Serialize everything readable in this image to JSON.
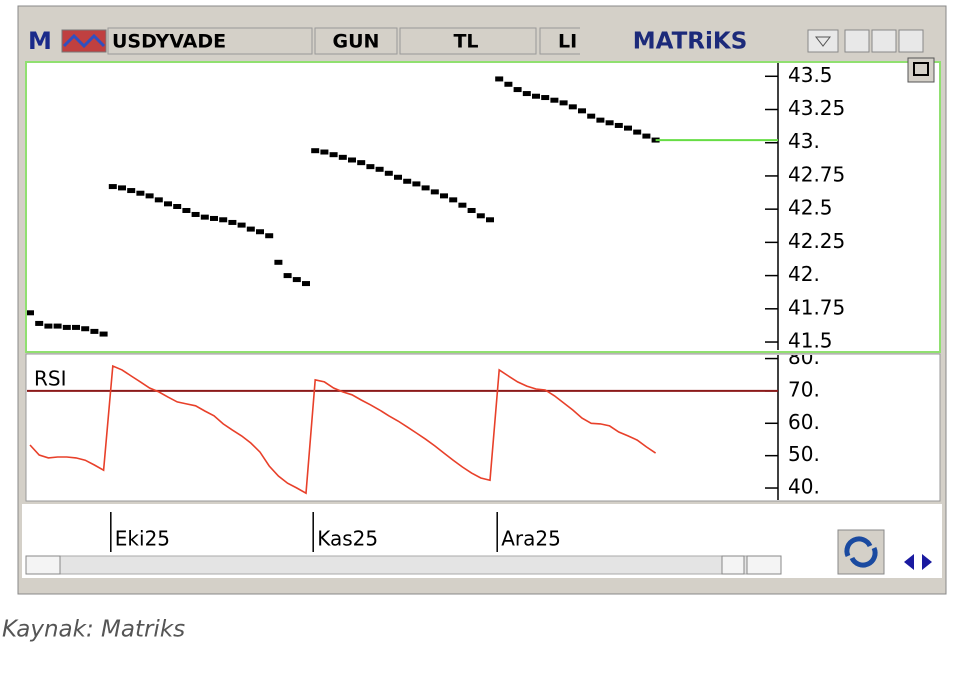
{
  "toolbar": {
    "logo_letter": "M",
    "symbol": "USDYVADE",
    "period": "GUN",
    "currency": "TL",
    "mode": "LI",
    "brand": "MATRiKS"
  },
  "source": "Kaynak: Matriks",
  "chart_data": [
    {
      "type": "point",
      "color": "#000000",
      "last_line_color": "#66dd44",
      "categories": [
        null,
        null,
        null,
        null,
        null,
        null,
        null,
        null,
        null,
        "Eki25",
        null,
        null,
        null,
        null,
        null,
        null,
        null,
        null,
        null,
        null,
        null,
        null,
        null,
        null,
        null,
        null,
        null,
        null,
        null,
        null,
        null,
        "Kas25",
        null,
        null,
        null,
        null,
        null,
        null,
        null,
        null,
        null,
        null,
        null,
        null,
        null,
        null,
        null,
        null,
        null,
        null,
        null,
        "Ara25",
        null,
        null,
        null,
        null,
        null,
        null,
        null,
        null,
        null,
        null,
        null,
        null,
        null,
        null,
        null,
        null,
        null
      ],
      "values": [
        41.72,
        41.64,
        41.62,
        41.62,
        41.61,
        41.61,
        41.6,
        41.58,
        41.56,
        42.67,
        42.66,
        42.64,
        42.62,
        42.6,
        42.57,
        42.54,
        42.52,
        42.49,
        42.46,
        42.44,
        42.43,
        42.42,
        42.4,
        42.38,
        42.35,
        42.33,
        42.3,
        42.1,
        42.0,
        41.97,
        41.94,
        42.94,
        42.93,
        42.91,
        42.89,
        42.87,
        42.85,
        42.82,
        42.8,
        42.77,
        42.74,
        42.71,
        42.69,
        42.66,
        42.63,
        42.6,
        42.57,
        42.53,
        42.49,
        42.45,
        42.42,
        43.48,
        43.44,
        43.4,
        43.37,
        43.35,
        43.34,
        43.32,
        43.3,
        43.27,
        43.24,
        43.2,
        43.17,
        43.15,
        43.13,
        43.11,
        43.08,
        43.05,
        43.02
      ],
      "ylim": [
        41.44,
        43.6
      ],
      "yticks": [
        43.5,
        43.25,
        {
          "value": 43,
          "label": "43."
        },
        42.75,
        42.5,
        42.25,
        {
          "value": 42,
          "label": "42."
        },
        41.75,
        41.5
      ]
    },
    {
      "type": "line",
      "title": "RSI",
      "color": "#e8402a",
      "hline": 70,
      "hline_color": "#8b1a1a",
      "values": [
        53.3,
        50.2,
        49.3,
        49.6,
        49.6,
        49.3,
        48.6,
        47.1,
        45.5,
        77.7,
        76.5,
        74.6,
        72.8,
        70.9,
        69.7,
        68.1,
        66.6,
        66.0,
        65.4,
        63.8,
        62.3,
        59.8,
        57.9,
        56.1,
        53.9,
        51.1,
        46.8,
        43.7,
        41.5,
        40.0,
        38.4,
        73.4,
        72.8,
        70.9,
        69.7,
        68.8,
        67.2,
        65.7,
        64.1,
        62.3,
        60.7,
        58.9,
        57.0,
        55.1,
        53.0,
        50.8,
        48.6,
        46.5,
        44.6,
        43.1,
        42.4,
        76.5,
        74.6,
        72.8,
        71.5,
        70.6,
        70.3,
        68.5,
        66.3,
        64.1,
        61.6,
        60.0,
        59.8,
        59.2,
        57.3,
        56.1,
        54.8,
        52.7,
        50.8
      ],
      "ylim": [
        36.3,
        81.1
      ],
      "yticks": [
        {
          "value": 80,
          "label": "80."
        },
        {
          "value": 70,
          "label": "70."
        },
        {
          "value": 60,
          "label": "60."
        },
        {
          "value": 50,
          "label": "50."
        },
        {
          "value": 40,
          "label": "40."
        }
      ]
    }
  ]
}
